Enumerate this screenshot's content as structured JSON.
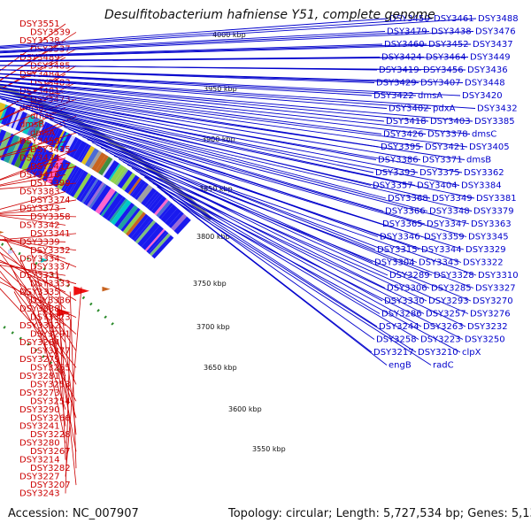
{
  "title": "Desulfitobacterium hafniense Y51, complete genome",
  "accession": "Accession: NC_007907",
  "topology": "Topology: circular; Length: 5,727,534 bp; Genes: 5,137",
  "ticks": [
    "4000 kbp",
    "3950 kbp",
    "3900 kbp",
    "3850 kbp",
    "3800 kbp",
    "3750 kbp",
    "3700 kbp",
    "3650 kbp",
    "3600 kbp",
    "3550 kbp"
  ],
  "left_labels": [
    "DSY3551",
    "DSY3539",
    "DSY3538",
    "DSY3537",
    "DSY3489",
    "DSY3485",
    "DSY3484",
    "DSY3483",
    "DSY3481",
    "DSY3473",
    "dmsB",
    "dmsC",
    "dmsB",
    "dmsA",
    "DSY3459",
    "DSY3435",
    "DSY3434",
    "DSY3417",
    "DSY3416",
    "DSY3399",
    "DSY3383",
    "DSY3374",
    "DSY3373",
    "DSY3358",
    "DSY3342",
    "DSY3341",
    "DSY3339",
    "DSY3332",
    "DSY3334",
    "DSY3337",
    "DSY3331",
    "DSY3333",
    "DSY3335",
    "DSY3336",
    "DSY3338",
    "DSY3323",
    "DSY3312",
    "DSY3291",
    "DSY3284",
    "DSY3277",
    "DSY3279",
    "DSY3255",
    "DSY3281",
    "DSY3253",
    "DSY3273",
    "DSY3254",
    "DSY3290",
    "DSY3266",
    "DSY3241",
    "DSY3228",
    "DSY3280",
    "DSY3267",
    "DSY3214",
    "DSY3282",
    "DSY3227",
    "DSY3207",
    "DSY3243"
  ],
  "right_labels": [
    "DSY3450",
    "DSY3461",
    "DSY3488",
    "DSY3479",
    "DSY3438",
    "DSY3476",
    "DSY3460",
    "DSY3452",
    "DSY3437",
    "DSY3424",
    "DSY3464",
    "DSY3449",
    "DSY3419",
    "DSY3456",
    "DSY3436",
    "DSY3429",
    "DSY3407",
    "DSY3448",
    "DSY3422",
    "dmsA",
    "DSY3420",
    "DSY3402",
    "pdxA",
    "DSY3432",
    "DSY3418",
    "DSY3403",
    "DSY3385",
    "DSY3426",
    "DSY3378",
    "dmsC",
    "DSY3395",
    "DSY3421",
    "DSY3405",
    "DSY3386",
    "DSY3371",
    "dmsB",
    "DSY3393",
    "DSY3375",
    "DSY3362",
    "DSY3357",
    "DSY3404",
    "DSY3384",
    "DSY3368",
    "DSY3349",
    "DSY3381",
    "DSY3366",
    "DSY3348",
    "DSY3379",
    "DSY3365",
    "DSY3347",
    "DSY3363",
    "DSY3346",
    "DSY3359",
    "DSY3345",
    "DSY3315",
    "DSY3344",
    "DSY3329",
    "DSY3304",
    "DSY3343",
    "DSY3322",
    "DSY3289",
    "DSY3328",
    "DSY3310",
    "DSY3306",
    "DSY3285",
    "DSY3327",
    "DSY3330",
    "DSY3293",
    "DSY3270",
    "DSY3286",
    "DSY3257",
    "DSY3276",
    "DSY3244",
    "DSY3263",
    "DSY3232",
    "DSY3258",
    "DSY3223",
    "DSY3250",
    "DSY3217",
    "DSY3210",
    "clpX",
    "engB",
    "radC"
  ],
  "colors": {
    "left_label": "#cc0000",
    "right_label": "#0000cc",
    "backbone": "#808080",
    "cds": "#1a1aee",
    "feature_red": "#ee1111",
    "dots": "#2a8a2a"
  }
}
